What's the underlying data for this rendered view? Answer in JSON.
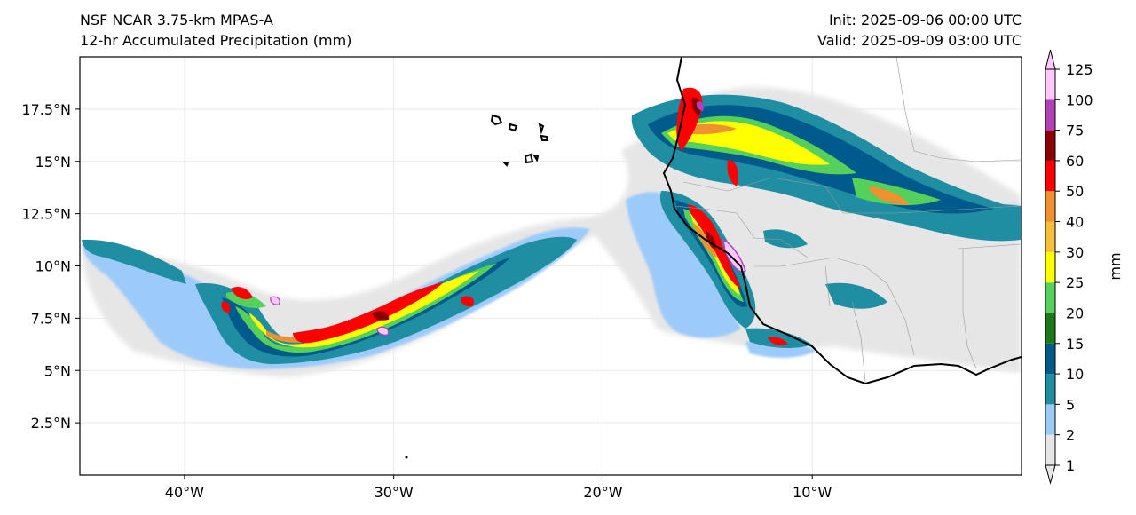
{
  "header": {
    "model": "NSF NCAR 3.75-km MPAS-A",
    "field": "12-hr Accumulated Precipitation (mm)",
    "init": "Init: 2025-09-06 00:00 UTC",
    "valid": "Valid: 2025-09-09 03:00 UTC"
  },
  "map": {
    "lon_range": [
      -45,
      0
    ],
    "lat_range": [
      0,
      20
    ],
    "lon_ticks": [
      {
        "value": -40,
        "label": "40°W"
      },
      {
        "value": -30,
        "label": "30°W"
      },
      {
        "value": -20,
        "label": "20°W"
      },
      {
        "value": -10,
        "label": "10°W"
      }
    ],
    "lat_ticks": [
      {
        "value": 2.5,
        "label": "2.5°N"
      },
      {
        "value": 5,
        "label": "5°N"
      },
      {
        "value": 7.5,
        "label": "7.5°N"
      },
      {
        "value": 10,
        "label": "10°N"
      },
      {
        "value": 12.5,
        "label": "12.5°N"
      },
      {
        "value": 15,
        "label": "15°N"
      },
      {
        "value": 17.5,
        "label": "17.5°N"
      }
    ],
    "coastline_color": "#000000",
    "border_color": "#9a9a9a"
  },
  "colorbar": {
    "label": "mm",
    "levels": [
      "1",
      "2",
      "5",
      "10",
      "15",
      "20",
      "25",
      "30",
      "40",
      "50",
      "60",
      "75",
      "100",
      "125"
    ],
    "colors": [
      "#e6e6e6",
      "#9dcbf9",
      "#1f8ea3",
      "#005a8c",
      "#1a7a1a",
      "#55d15b",
      "#ffff00",
      "#f7be3a",
      "#ef9131",
      "#ff0000",
      "#8b0000",
      "#b43fb8",
      "#ffc8ff"
    ]
  }
}
